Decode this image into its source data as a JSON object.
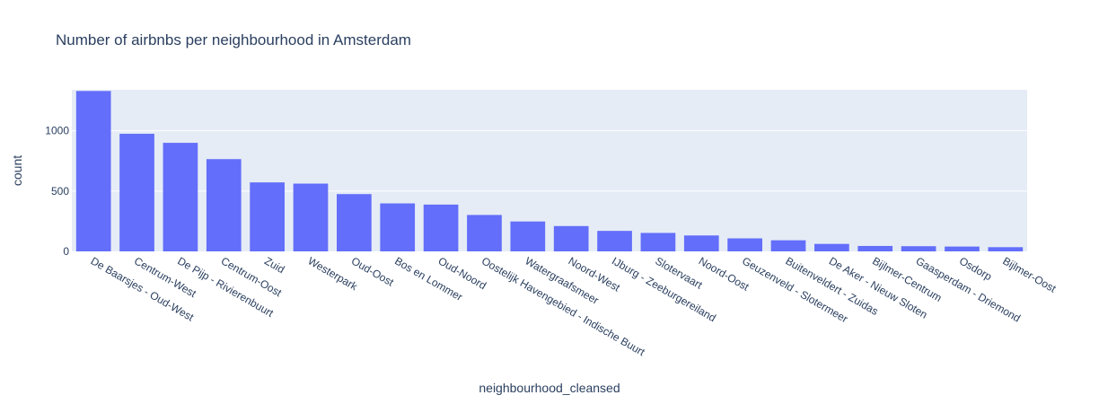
{
  "chart_data": {
    "type": "bar",
    "title": "Number of airbnbs per neighbourhood in Amsterdam",
    "xlabel": "neighbourhood_cleansed",
    "ylabel": "count",
    "ylim": [
      0,
      1340
    ],
    "yticks": [
      0,
      500,
      1000
    ],
    "grid": true,
    "bar_color": "#636efa",
    "plot_bg": "#e5ecf6",
    "text_color": "#2a3f5f",
    "categories": [
      "De Baarsjes - Oud-West",
      "Centrum-West",
      "De Pijp - Rivierenbuurt",
      "Centrum-Oost",
      "Zuid",
      "Westerpark",
      "Oud-Oost",
      "Bos en Lommer",
      "Oud-Noord",
      "Oostelijk Havengebied - Indische Buurt",
      "Watergraafsmeer",
      "Noord-West",
      "IJburg - Zeeburgereiland",
      "Slotervaart",
      "Noord-Oost",
      "Geuzenveld - Slotermeer",
      "Buitenveldert - Zuidas",
      "De Aker - Nieuw Sloten",
      "Bijlmer-Centrum",
      "Gaasperdam - Driemond",
      "Osdorp",
      "Bijlmer-Oost"
    ],
    "values": [
      1330,
      975,
      900,
      765,
      572,
      562,
      475,
      398,
      388,
      302,
      248,
      210,
      170,
      153,
      132,
      108,
      92,
      62,
      45,
      43,
      40,
      35
    ]
  }
}
